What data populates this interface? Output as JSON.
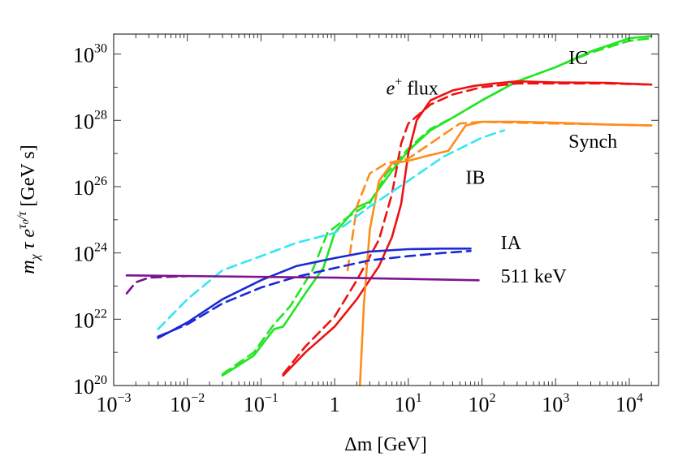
{
  "chart_data": {
    "type": "line",
    "title": "",
    "xlabel": "Δm  [GeV]",
    "ylabel_parts": {
      "m": "m",
      "chi": "χ",
      "tau": "τ",
      "e": "e",
      "exp_tau0": "τ",
      "exp_sub": "0",
      "exp_tau": "/τ",
      "units": "[GeV  s]"
    },
    "x_scale": "log",
    "y_scale": "log",
    "xlim": [
      0.001,
      25000
    ],
    "ylim": [
      1e+20,
      4e+30
    ],
    "x_ticks": [
      {
        "value": 0.001,
        "base": "10",
        "exp": "−3"
      },
      {
        "value": 0.01,
        "base": "10",
        "exp": "−2"
      },
      {
        "value": 0.1,
        "base": "10",
        "exp": "−1"
      },
      {
        "value": 1,
        "base": "1",
        "exp": ""
      },
      {
        "value": 10,
        "base": "10",
        "exp": "1"
      },
      {
        "value": 100,
        "base": "10",
        "exp": "2"
      },
      {
        "value": 1000,
        "base": "10",
        "exp": "3"
      },
      {
        "value": 10000,
        "base": "10",
        "exp": "4"
      }
    ],
    "y_ticks": [
      {
        "value": 1e+20,
        "base": "10",
        "exp": "20"
      },
      {
        "value": 1e+22,
        "base": "10",
        "exp": "22"
      },
      {
        "value": 1e+24,
        "base": "10",
        "exp": "24"
      },
      {
        "value": 1e+26,
        "base": "10",
        "exp": "26"
      },
      {
        "value": 1e+28,
        "base": "10",
        "exp": "28"
      },
      {
        "value": 1e+30,
        "base": "10",
        "exp": "30"
      }
    ],
    "grid": false,
    "colors": {
      "ic": "#22e622",
      "positron": "#ee1111",
      "synch": "#ff8c1a",
      "ib": "#33e6f2",
      "ia": "#1a2ad6",
      "line511": "#7a1490"
    },
    "series": [
      {
        "id": "ic",
        "label": "IC",
        "color": "#22e622",
        "dash": false,
        "points": [
          [
            0.03,
            2e+20
          ],
          [
            0.08,
            8e+20
          ],
          [
            0.15,
            5e+21
          ],
          [
            0.2,
            6e+21
          ],
          [
            0.4,
            6e+22
          ],
          [
            0.7,
            3.5e+23
          ],
          [
            1,
            4e+24
          ],
          [
            2,
            2.4e+25
          ],
          [
            3,
            3.5e+25
          ],
          [
            6,
            3e+26
          ],
          [
            10,
            1.2e+27
          ],
          [
            20,
            5e+27
          ],
          [
            40,
            1.2e+28
          ],
          [
            100,
            4e+28
          ],
          [
            300,
            1.5e+29
          ],
          [
            1000,
            4e+29
          ],
          [
            3000,
            1.2e+30
          ],
          [
            10000,
            3e+30
          ],
          [
            20000,
            3.5e+30
          ]
        ]
      },
      {
        "id": "ic_dash",
        "label": "",
        "color": "#22e622",
        "dash": true,
        "points": [
          [
            0.03,
            2.2e+20
          ],
          [
            0.08,
            1e+21
          ],
          [
            0.15,
            7e+21
          ],
          [
            0.25,
            2.5e+22
          ],
          [
            0.5,
            3e+23
          ],
          [
            0.8,
            4e+24
          ],
          [
            1.5,
            1.2e+25
          ],
          [
            3,
            3.2e+25
          ],
          [
            5,
            2.4e+26
          ],
          [
            10,
            1.4e+27
          ],
          [
            20,
            5.5e+27
          ],
          [
            40,
            1.2e+28
          ],
          [
            100,
            4e+28
          ],
          [
            300,
            1.5e+29
          ],
          [
            1000,
            4e+29
          ],
          [
            3000,
            1.1e+30
          ],
          [
            10000,
            2.5e+30
          ],
          [
            20000,
            3e+30
          ]
        ]
      },
      {
        "id": "positron",
        "label": "e⁺ flux",
        "color": "#ee1111",
        "dash": false,
        "points": [
          [
            0.2,
            2e+20
          ],
          [
            0.4,
            1e+21
          ],
          [
            1,
            6e+21
          ],
          [
            2,
            4e+22
          ],
          [
            4,
            4e+23
          ],
          [
            6,
            3e+24
          ],
          [
            8,
            3e+25
          ],
          [
            10,
            1e+27
          ],
          [
            13,
            1e+28
          ],
          [
            20,
            4e+28
          ],
          [
            40,
            8e+28
          ],
          [
            80,
            1.1e+29
          ],
          [
            150,
            1.3e+29
          ],
          [
            300,
            1.5e+29
          ],
          [
            1000,
            1.4e+29
          ],
          [
            5000,
            1.35e+29
          ],
          [
            20000,
            1.2e+29
          ]
        ]
      },
      {
        "id": "positron_dash",
        "label": "",
        "color": "#ee1111",
        "dash": true,
        "points": [
          [
            0.2,
            2.2e+20
          ],
          [
            0.4,
            1.5e+21
          ],
          [
            1,
            1.2e+22
          ],
          [
            2,
            1.5e+23
          ],
          [
            4,
            2.5e+24
          ],
          [
            6,
            6e+25
          ],
          [
            8,
            2e+27
          ],
          [
            10,
            8e+27
          ],
          [
            20,
            3e+28
          ],
          [
            40,
            6e+28
          ],
          [
            100,
            1e+29
          ],
          [
            300,
            1.3e+29
          ],
          [
            1000,
            1.3e+29
          ],
          [
            5000,
            1.3e+29
          ],
          [
            20000,
            1.2e+29
          ]
        ]
      },
      {
        "id": "synch",
        "label": "Synch",
        "color": "#ff8c1a",
        "dash": false,
        "points": [
          [
            2.2,
            1e+20
          ],
          [
            2.5,
            3e+22
          ],
          [
            3,
            5e+24
          ],
          [
            4,
            1.5e+26
          ],
          [
            6,
            5e+26
          ],
          [
            10,
            6e+26
          ],
          [
            20,
            9e+26
          ],
          [
            35,
            1.2e+27
          ],
          [
            60,
            7e+27
          ],
          [
            100,
            9e+27
          ],
          [
            300,
            9e+27
          ],
          [
            1000,
            8.5e+27
          ],
          [
            5000,
            7.5e+27
          ],
          [
            20000,
            7e+27
          ]
        ]
      },
      {
        "id": "synch_dash",
        "label": "",
        "color": "#ff8c1a",
        "dash": true,
        "points": [
          [
            1.5,
            3e+23
          ],
          [
            2,
            2.5e+25
          ],
          [
            3,
            2.5e+26
          ],
          [
            5,
            5e+26
          ],
          [
            10,
            7e+26
          ],
          [
            20,
            2e+27
          ],
          [
            50,
            8e+27
          ],
          [
            100,
            9e+27
          ],
          [
            300,
            8.5e+27
          ],
          [
            1000,
            8e+27
          ],
          [
            5000,
            7.5e+27
          ],
          [
            20000,
            7e+27
          ]
        ]
      },
      {
        "id": "ib",
        "label": "IB",
        "color": "#33e6f2",
        "dash": true,
        "points": [
          [
            0.004,
            5e+21
          ],
          [
            0.01,
            4e+22
          ],
          [
            0.03,
            3e+23
          ],
          [
            0.1,
            8e+23
          ],
          [
            0.3,
            2e+24
          ],
          [
            1,
            4e+24
          ],
          [
            3,
            2.5e+25
          ],
          [
            10,
            1.5e+26
          ],
          [
            30,
            8e+26
          ],
          [
            100,
            3e+27
          ],
          [
            200,
            5e+27
          ]
        ]
      },
      {
        "id": "ia",
        "label": "IA",
        "color": "#1a2ad6",
        "dash": false,
        "points": [
          [
            0.004,
            2.7e+21
          ],
          [
            0.01,
            8e+21
          ],
          [
            0.03,
            4e+22
          ],
          [
            0.1,
            1.5e+23
          ],
          [
            0.3,
            4e+23
          ],
          [
            1,
            7e+23
          ],
          [
            3,
            1.1e+24
          ],
          [
            10,
            1.3e+24
          ],
          [
            30,
            1.35e+24
          ],
          [
            70,
            1.35e+24
          ]
        ]
      },
      {
        "id": "ia_dash",
        "label": "",
        "color": "#1a2ad6",
        "dash": true,
        "points": [
          [
            0.004,
            3e+21
          ],
          [
            0.01,
            7e+21
          ],
          [
            0.03,
            3e+22
          ],
          [
            0.1,
            9e+22
          ],
          [
            0.3,
            1.9e+23
          ],
          [
            1,
            3.5e+23
          ],
          [
            3,
            6e+23
          ],
          [
            10,
            8e+23
          ],
          [
            30,
            1e+24
          ],
          [
            70,
            1.15e+24
          ]
        ]
      },
      {
        "id": "line511",
        "label": "511 keV",
        "color": "#7a1490",
        "dash": false,
        "points": [
          [
            0.0015,
            2.1e+23
          ],
          [
            1,
            1.8e+23
          ],
          [
            90,
            1.5e+23
          ]
        ]
      },
      {
        "id": "line511_dash",
        "label": "",
        "color": "#7a1490",
        "dash": true,
        "points": [
          [
            0.0015,
            6e+22
          ],
          [
            0.002,
            1.3e+23
          ],
          [
            0.003,
            1.8e+23
          ],
          [
            0.01,
            2e+23
          ]
        ]
      }
    ],
    "annotations": [
      {
        "id": "ic",
        "text": "IC",
        "x": 1500,
        "y": 5e+29
      },
      {
        "id": "positron",
        "text_base": "e",
        "text_sup": "+",
        "text_rest": " flux",
        "x": 5,
        "y": 6e+28
      },
      {
        "id": "synch",
        "text": "Synch",
        "x": 1500,
        "y": 1.5e+27
      },
      {
        "id": "ib",
        "text": "IB",
        "x": 60,
        "y": 1.2e+26
      },
      {
        "id": "ia",
        "text": "IA",
        "x": 180,
        "y": 1.3e+24
      },
      {
        "id": "line511",
        "text": "511 keV",
        "x": 180,
        "y": 1.3e+23
      }
    ]
  }
}
